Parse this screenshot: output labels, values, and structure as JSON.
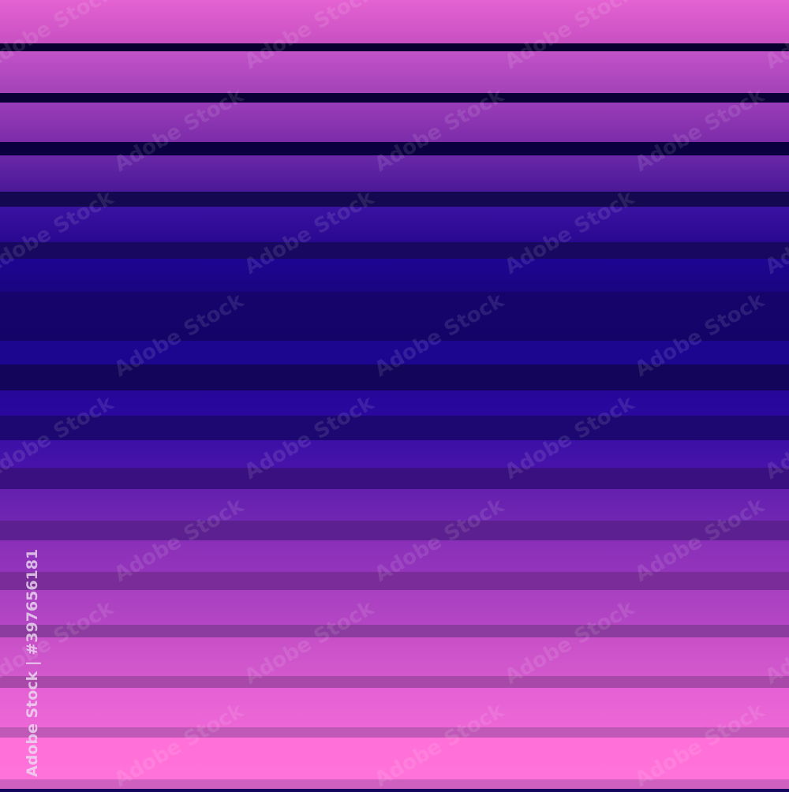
{
  "watermark": {
    "text": "Adobe Stock",
    "id_label": "Adobe Stock | #397656181"
  },
  "stripes": [
    {
      "from": 0,
      "to": 55,
      "c1": "#e462d2",
      "c2": "#c850c2"
    },
    {
      "from": 55,
      "to": 65,
      "c1": "#0a0030",
      "c2": "#0a0030"
    },
    {
      "from": 65,
      "to": 118,
      "c1": "#c252c8",
      "c2": "#a442b8"
    },
    {
      "from": 118,
      "to": 130,
      "c1": "#0a0035",
      "c2": "#0a0035"
    },
    {
      "from": 130,
      "to": 180,
      "c1": "#9a3cb8",
      "c2": "#7c2caa"
    },
    {
      "from": 180,
      "to": 197,
      "c1": "#0a0040",
      "c2": "#0a0040"
    },
    {
      "from": 197,
      "to": 243,
      "c1": "#6a28a8",
      "c2": "#4a1898"
    },
    {
      "from": 243,
      "to": 262,
      "c1": "#140850",
      "c2": "#140850"
    },
    {
      "from": 262,
      "to": 307,
      "c1": "#3a12a2",
      "c2": "#2a0890"
    },
    {
      "from": 307,
      "to": 328,
      "c1": "#180860",
      "c2": "#180860"
    },
    {
      "from": 328,
      "to": 370,
      "c1": "#1e0592",
      "c2": "#1a0580"
    },
    {
      "from": 370,
      "to": 432,
      "c1": "#16046c",
      "c2": "#140468"
    },
    {
      "from": 432,
      "to": 462,
      "c1": "#1c0690",
      "c2": "#1c0690"
    },
    {
      "from": 462,
      "to": 495,
      "c1": "#12055a",
      "c2": "#12055a"
    },
    {
      "from": 495,
      "to": 527,
      "c1": "#26079a",
      "c2": "#2a089e"
    },
    {
      "from": 527,
      "to": 558,
      "c1": "#1c0870",
      "c2": "#1c0870"
    },
    {
      "from": 558,
      "to": 593,
      "c1": "#3c10a6",
      "c2": "#4812aa"
    },
    {
      "from": 593,
      "to": 620,
      "c1": "#3a1080",
      "c2": "#3a1080"
    },
    {
      "from": 620,
      "to": 660,
      "c1": "#6420ae",
      "c2": "#7026b2"
    },
    {
      "from": 660,
      "to": 685,
      "c1": "#5c2090",
      "c2": "#5c2090"
    },
    {
      "from": 685,
      "to": 725,
      "c1": "#8a30b8",
      "c2": "#9434bc"
    },
    {
      "from": 725,
      "to": 748,
      "c1": "#7a2c98",
      "c2": "#7a2c98"
    },
    {
      "from": 748,
      "to": 792,
      "c1": "#a840c0",
      "c2": "#b446c4"
    },
    {
      "from": 792,
      "to": 808,
      "c1": "#8c3c9e",
      "c2": "#8c3c9e"
    },
    {
      "from": 808,
      "to": 857,
      "c1": "#c850c8",
      "c2": "#d258cc"
    },
    {
      "from": 857,
      "to": 872,
      "c1": "#a848a8",
      "c2": "#a848a8"
    },
    {
      "from": 872,
      "to": 922,
      "c1": "#e460d4",
      "c2": "#ec66d6"
    },
    {
      "from": 922,
      "to": 935,
      "c1": "#c058b8",
      "c2": "#c058b8"
    },
    {
      "from": 935,
      "to": 988,
      "c1": "#ff70d8",
      "c2": "#ff72da"
    },
    {
      "from": 988,
      "to": 1000,
      "c1": "#d060c0",
      "c2": "#d060c0"
    }
  ]
}
